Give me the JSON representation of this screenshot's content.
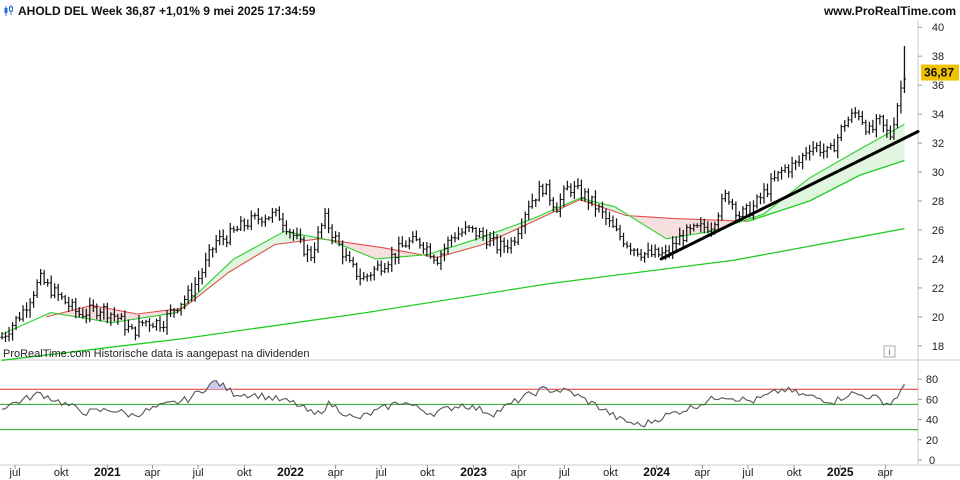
{
  "header": {
    "title": "AHOLD DEL Week 36,87 +1,01% 9 mei 2025 17:34:59",
    "brand": "www.ProRealTime.com"
  },
  "note": "ProRealTime.com Historische data is aangepast na dividenden",
  "info_icon": "i",
  "colors": {
    "bar": "#111111",
    "ma_short": "#2fcf2f",
    "ma_mid": "#e05050",
    "ma_long": "#22cc22",
    "trendline": "#000000",
    "fill_up": "#dff5df",
    "fill_down": "#f7dede",
    "last_label_bg": "#f2c200",
    "rsi_line": "#555555",
    "rsi_upper": "#e03030",
    "rsi_mid": "#22aa22",
    "rsi_lower": "#22aa22"
  },
  "chart_data": [
    {
      "type": "ohlc",
      "name": "price",
      "x_axis": "time",
      "y_ticks": [
        18,
        20,
        22,
        24,
        26,
        28,
        30,
        32,
        34,
        36,
        38,
        40
      ],
      "ylim": [
        17.3,
        40.5
      ],
      "xlim": [
        "2020-06-01",
        "2025-06-05"
      ],
      "last_value": "36,87",
      "price_anchors": [
        [
          "2020-06-05",
          18.6
        ],
        [
          "2020-07-15",
          20.3
        ],
        [
          "2020-08-20",
          22.6
        ],
        [
          "2020-09-10",
          21.9
        ],
        [
          "2020-10-10",
          21.0
        ],
        [
          "2020-11-05",
          20.2
        ],
        [
          "2020-12-20",
          20.6
        ],
        [
          "2021-01-20",
          20.0
        ],
        [
          "2021-02-20",
          18.9
        ],
        [
          "2021-03-15",
          19.7
        ],
        [
          "2021-04-20",
          19.6
        ],
        [
          "2021-05-20",
          20.8
        ],
        [
          "2021-06-15",
          21.6
        ],
        [
          "2021-07-10",
          23.2
        ],
        [
          "2021-08-05",
          25.2
        ],
        [
          "2021-09-01",
          25.6
        ],
        [
          "2021-10-01",
          26.4
        ],
        [
          "2021-11-10",
          27.0
        ],
        [
          "2021-12-10",
          27.0
        ],
        [
          "2022-01-20",
          25.0
        ],
        [
          "2022-02-10",
          24.2
        ],
        [
          "2022-03-10",
          26.8
        ],
        [
          "2022-03-30",
          25.5
        ],
        [
          "2022-04-30",
          23.5
        ],
        [
          "2022-05-25",
          22.6
        ],
        [
          "2022-06-15",
          23.2
        ],
        [
          "2022-07-20",
          24.1
        ],
        [
          "2022-08-20",
          25.1
        ],
        [
          "2022-09-20",
          25.2
        ],
        [
          "2022-10-20",
          24.0
        ],
        [
          "2022-11-20",
          25.6
        ],
        [
          "2022-12-20",
          26.0
        ],
        [
          "2023-01-20",
          25.6
        ],
        [
          "2023-02-20",
          24.8
        ],
        [
          "2023-03-20",
          25.2
        ],
        [
          "2023-04-20",
          27.8
        ],
        [
          "2023-05-20",
          29.0
        ],
        [
          "2023-06-15",
          27.6
        ],
        [
          "2023-07-10",
          29.0
        ],
        [
          "2023-08-10",
          28.4
        ],
        [
          "2023-09-10",
          27.3
        ],
        [
          "2023-10-10",
          25.9
        ],
        [
          "2023-11-10",
          24.9
        ],
        [
          "2023-12-10",
          24.3
        ],
        [
          "2024-01-20",
          24.3
        ],
        [
          "2024-02-20",
          25.6
        ],
        [
          "2024-03-20",
          26.0
        ],
        [
          "2024-04-20",
          26.4
        ],
        [
          "2024-05-20",
          28.5
        ],
        [
          "2024-06-15",
          27.0
        ],
        [
          "2024-07-10",
          27.5
        ],
        [
          "2024-08-10",
          28.9
        ],
        [
          "2024-09-10",
          30.2
        ],
        [
          "2024-10-10",
          30.6
        ],
        [
          "2024-10-30",
          31.8
        ],
        [
          "2024-11-20",
          31.7
        ],
        [
          "2024-12-10",
          31.2
        ],
        [
          "2025-01-10",
          33.4
        ],
        [
          "2025-02-05",
          34.2
        ],
        [
          "2025-03-01",
          32.7
        ],
        [
          "2025-03-20",
          33.5
        ],
        [
          "2025-04-10",
          32.4
        ],
        [
          "2025-05-09",
          36.87
        ]
      ],
      "ma_short_anchors": [
        [
          "2020-06-05",
          18.8
        ],
        [
          "2020-09-10",
          20.3
        ],
        [
          "2021-01-10",
          19.6
        ],
        [
          "2021-05-20",
          20.3
        ],
        [
          "2021-09-10",
          24.0
        ],
        [
          "2021-12-20",
          25.9
        ],
        [
          "2022-03-20",
          25.3
        ],
        [
          "2022-06-20",
          24.0
        ],
        [
          "2022-10-01",
          24.3
        ],
        [
          "2023-01-10",
          25.4
        ],
        [
          "2023-05-01",
          26.8
        ],
        [
          "2023-08-01",
          28.2
        ],
        [
          "2023-10-10",
          27.6
        ],
        [
          "2024-01-20",
          25.4
        ],
        [
          "2024-04-20",
          25.9
        ],
        [
          "2024-08-01",
          27.1
        ],
        [
          "2024-11-01",
          29.6
        ],
        [
          "2025-02-10",
          31.6
        ],
        [
          "2025-05-09",
          33.3
        ]
      ],
      "ma_mid_anchors": [
        [
          "2020-09-01",
          20.0
        ],
        [
          "2020-12-01",
          20.8
        ],
        [
          "2021-03-01",
          20.2
        ],
        [
          "2021-06-01",
          20.6
        ],
        [
          "2021-09-01",
          23.1
        ],
        [
          "2021-12-01",
          25.0
        ],
        [
          "2022-03-01",
          25.4
        ],
        [
          "2022-07-01",
          24.8
        ],
        [
          "2022-10-20",
          24.1
        ],
        [
          "2023-01-20",
          25.0
        ],
        [
          "2023-05-01",
          26.6
        ],
        [
          "2023-08-01",
          28.1
        ],
        [
          "2023-11-01",
          27.0
        ],
        [
          "2024-02-01",
          26.8
        ],
        [
          "2024-07-01",
          26.6
        ]
      ],
      "ma_mid2_anchors": [
        [
          "2024-07-01",
          26.6
        ],
        [
          "2024-11-01",
          28.0
        ],
        [
          "2025-02-10",
          29.8
        ],
        [
          "2025-05-09",
          30.8
        ]
      ],
      "ma_long_anchors": [
        [
          "2020-06-05",
          17.0
        ],
        [
          "2021-06-01",
          18.5
        ],
        [
          "2022-06-01",
          20.3
        ],
        [
          "2023-06-01",
          22.3
        ],
        [
          "2024-06-01",
          23.9
        ],
        [
          "2025-05-09",
          26.1
        ]
      ],
      "trendline": [
        [
          "2024-01-10",
          24.0
        ],
        [
          "2025-06-05",
          32.8
        ]
      ]
    },
    {
      "type": "line",
      "name": "RSI",
      "y_ticks": [
        0,
        20,
        40,
        60,
        80
      ],
      "ylim": [
        -3,
        97
      ],
      "levels": [
        70,
        55,
        30
      ],
      "rsi_anchors": [
        [
          "2020-06-05",
          52
        ],
        [
          "2020-07-20",
          60
        ],
        [
          "2020-08-20",
          66
        ],
        [
          "2020-10-10",
          55
        ],
        [
          "2020-11-20",
          47
        ],
        [
          "2021-01-10",
          50
        ],
        [
          "2021-02-20",
          44
        ],
        [
          "2021-04-10",
          52
        ],
        [
          "2021-06-10",
          60
        ],
        [
          "2021-08-05",
          78
        ],
        [
          "2021-09-10",
          66
        ],
        [
          "2021-11-01",
          64
        ],
        [
          "2022-01-10",
          56
        ],
        [
          "2022-02-20",
          44
        ],
        [
          "2022-03-20",
          56
        ],
        [
          "2022-05-10",
          40
        ],
        [
          "2022-06-20",
          48
        ],
        [
          "2022-08-10",
          58
        ],
        [
          "2022-10-10",
          46
        ],
        [
          "2022-12-10",
          55
        ],
        [
          "2023-02-10",
          46
        ],
        [
          "2023-04-10",
          62
        ],
        [
          "2023-05-20",
          70
        ],
        [
          "2023-07-10",
          68
        ],
        [
          "2023-09-10",
          52
        ],
        [
          "2023-10-20",
          40
        ],
        [
          "2023-12-01",
          34
        ],
        [
          "2024-01-20",
          44
        ],
        [
          "2024-03-10",
          52
        ],
        [
          "2024-05-10",
          64
        ],
        [
          "2024-07-10",
          58
        ],
        [
          "2024-09-10",
          70
        ],
        [
          "2024-10-20",
          64
        ],
        [
          "2024-12-20",
          58
        ],
        [
          "2025-01-20",
          66
        ],
        [
          "2025-03-10",
          62
        ],
        [
          "2025-04-10",
          55
        ],
        [
          "2025-05-09",
          72
        ]
      ]
    }
  ],
  "x_axis": {
    "labels": [
      {
        "date": "2020-07-01",
        "text": "jul"
      },
      {
        "date": "2020-10-01",
        "text": "okt"
      },
      {
        "date": "2021-01-01",
        "text": "2021",
        "bold": true
      },
      {
        "date": "2021-04-01",
        "text": "apr"
      },
      {
        "date": "2021-07-01",
        "text": "jul"
      },
      {
        "date": "2021-10-01",
        "text": "okt"
      },
      {
        "date": "2022-01-01",
        "text": "2022",
        "bold": true
      },
      {
        "date": "2022-04-01",
        "text": "apr"
      },
      {
        "date": "2022-07-01",
        "text": "jul"
      },
      {
        "date": "2022-10-01",
        "text": "okt"
      },
      {
        "date": "2023-01-01",
        "text": "2023",
        "bold": true
      },
      {
        "date": "2023-04-01",
        "text": "apr"
      },
      {
        "date": "2023-07-01",
        "text": "jul"
      },
      {
        "date": "2023-10-01",
        "text": "okt"
      },
      {
        "date": "2024-01-01",
        "text": "2024",
        "bold": true
      },
      {
        "date": "2024-04-01",
        "text": "apr"
      },
      {
        "date": "2024-07-01",
        "text": "jul"
      },
      {
        "date": "2024-10-01",
        "text": "okt"
      },
      {
        "date": "2025-01-01",
        "text": "2025",
        "bold": true
      },
      {
        "date": "2025-04-01",
        "text": "apr"
      }
    ]
  }
}
